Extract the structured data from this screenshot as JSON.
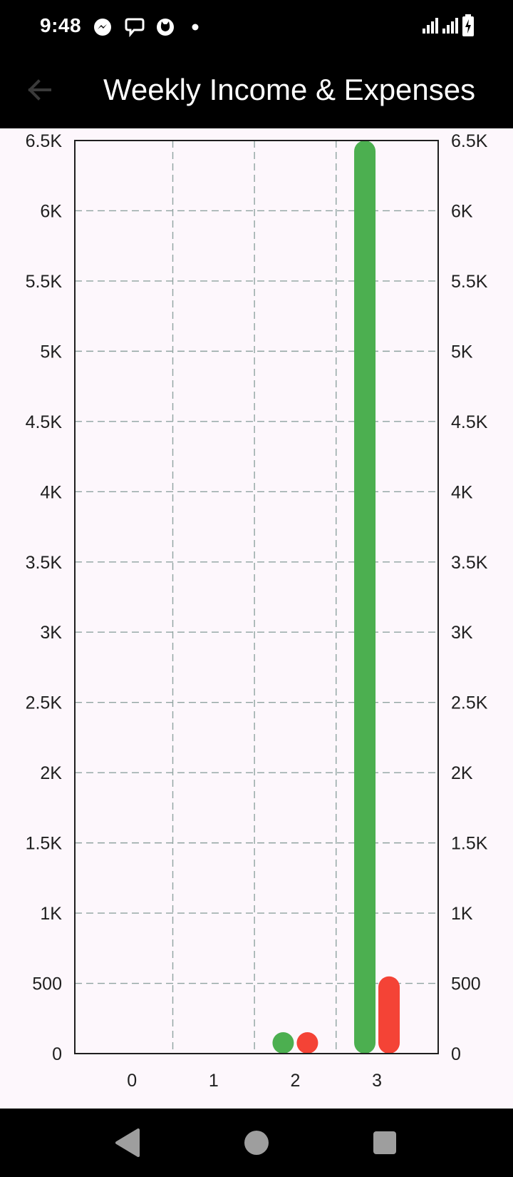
{
  "status_bar": {
    "time": "9:48",
    "icons": [
      "messenger-icon",
      "chat-bubble-icon",
      "cat-app-icon",
      "notification-dot-icon"
    ],
    "system_icons": [
      "signal-icon",
      "signal-icon",
      "battery-charging-icon"
    ]
  },
  "app_bar": {
    "back_icon": "arrow-back-icon",
    "title": "Weekly Income & Expenses"
  },
  "colors": {
    "income": "#4caf50",
    "expense": "#f44336",
    "grid": "#8fa3a0",
    "background": "#fdf7fc"
  },
  "chart_data": {
    "type": "bar",
    "categories": [
      "0",
      "1",
      "2",
      "3"
    ],
    "series": [
      {
        "values": [
          0,
          0,
          80,
          6500
        ],
        "color": "#4caf50"
      },
      {
        "values": [
          0,
          0,
          80,
          550
        ],
        "color": "#f44336"
      }
    ],
    "ylim": [
      0,
      6500
    ],
    "yticks": [
      "0",
      "500",
      "1K",
      "1.5K",
      "2K",
      "2.5K",
      "3K",
      "3.5K",
      "4K",
      "4.5K",
      "5K",
      "5.5K",
      "6K",
      "6.5K"
    ],
    "ytick_values": [
      0,
      500,
      1000,
      1500,
      2000,
      2500,
      3000,
      3500,
      4000,
      4500,
      5000,
      5500,
      6000,
      6500
    ],
    "y_axis_both_sides": true,
    "grid": true,
    "grid_style": "dashed"
  },
  "nav_bar": {
    "items": [
      "back-triangle-icon",
      "home-circle-icon",
      "recents-square-icon"
    ]
  }
}
